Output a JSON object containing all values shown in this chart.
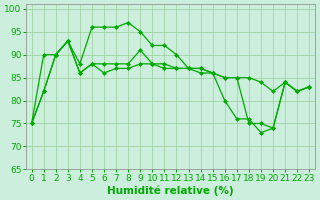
{
  "xlabel": "Humidité relative (%)",
  "xlim": [
    -0.5,
    23.5
  ],
  "ylim": [
    65,
    101
  ],
  "yticks": [
    65,
    70,
    75,
    80,
    85,
    90,
    95,
    100
  ],
  "xticks": [
    0,
    1,
    2,
    3,
    4,
    5,
    6,
    7,
    8,
    9,
    10,
    11,
    12,
    13,
    14,
    15,
    16,
    17,
    18,
    19,
    20,
    21,
    22,
    23
  ],
  "bg_color": "#cceedd",
  "line_color": "#00aa00",
  "grid_color": "#99cc99",
  "line1": [
    75,
    82,
    90,
    93,
    88,
    96,
    96,
    96,
    97,
    95,
    92,
    92,
    90,
    87,
    87,
    86,
    80,
    76,
    76,
    73,
    74,
    84,
    82,
    83
  ],
  "line2": [
    75,
    82,
    90,
    93,
    86,
    88,
    88,
    88,
    88,
    91,
    88,
    88,
    87,
    87,
    87,
    86,
    85,
    85,
    85,
    84,
    82,
    84,
    82,
    83
  ],
  "line3": [
    75,
    90,
    90,
    93,
    86,
    88,
    86,
    87,
    87,
    88,
    88,
    87,
    87,
    87,
    86,
    86,
    85,
    85,
    75,
    75,
    74,
    84,
    82,
    83
  ],
  "tick_fontsize": 6.5,
  "xlabel_fontsize": 7.5
}
